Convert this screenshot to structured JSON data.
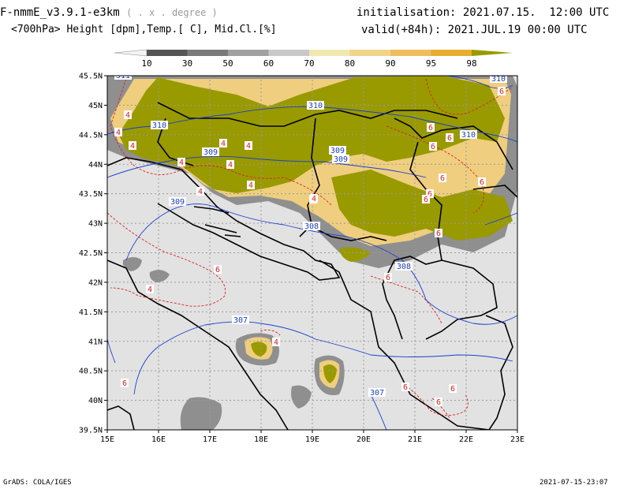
{
  "header": {
    "model_title": "F-nmmE_v3.9.1-e3km",
    "model_unit": "( . x . degree )",
    "variables": "<700hPa> Height [dpm],Temp.[ C], Mid.Cl.[%]",
    "initialisation": "initialisation: 2021.07.15.  12:00 UTC",
    "valid": "valid(+84h): 2021.JUL.19 00:00 UTC"
  },
  "colorbar": {
    "levels": [
      "10",
      "30",
      "50",
      "60",
      "70",
      "80",
      "90",
      "95",
      "98"
    ],
    "colors": [
      "#f4f4f4",
      "#555555",
      "#7a7a7a",
      "#a0a0a0",
      "#c8c8c8",
      "#efe9b0",
      "#f1d48a",
      "#eebd5e",
      "#e8ac2e",
      "#9a9a00"
    ]
  },
  "map": {
    "lon_ticks": [
      "15E",
      "16E",
      "17E",
      "18E",
      "19E",
      "20E",
      "21E",
      "22E",
      "23E"
    ],
    "lat_ticks": [
      "45.5N",
      "45N",
      "44.5N",
      "44N",
      "43.5N",
      "43N",
      "42.5N",
      "42N",
      "41.5N",
      "41N",
      "40.5N",
      "40N",
      "39.5N"
    ],
    "colors": {
      "land": "#e2e2e2",
      "cloud_high": "#999900",
      "height_contour": "#1b3fcf",
      "temp_contour": "#e02020"
    },
    "height_labels": [
      "311",
      "310",
      "310",
      "309",
      "309",
      "309",
      "309",
      "308",
      "308",
      "307",
      "307",
      "310",
      "310"
    ],
    "temp_labels": [
      "4",
      "4",
      "4",
      "4",
      "4",
      "4",
      "4",
      "4",
      "4",
      "4",
      "4",
      "6",
      "6",
      "6",
      "6",
      "6",
      "6",
      "6",
      "6",
      "6",
      "6",
      "6",
      "6",
      "6",
      "6",
      "6",
      "4",
      "4"
    ]
  },
  "footer": {
    "left": "GrADS: COLA/IGES",
    "right": "2021-07-15-23:07"
  }
}
